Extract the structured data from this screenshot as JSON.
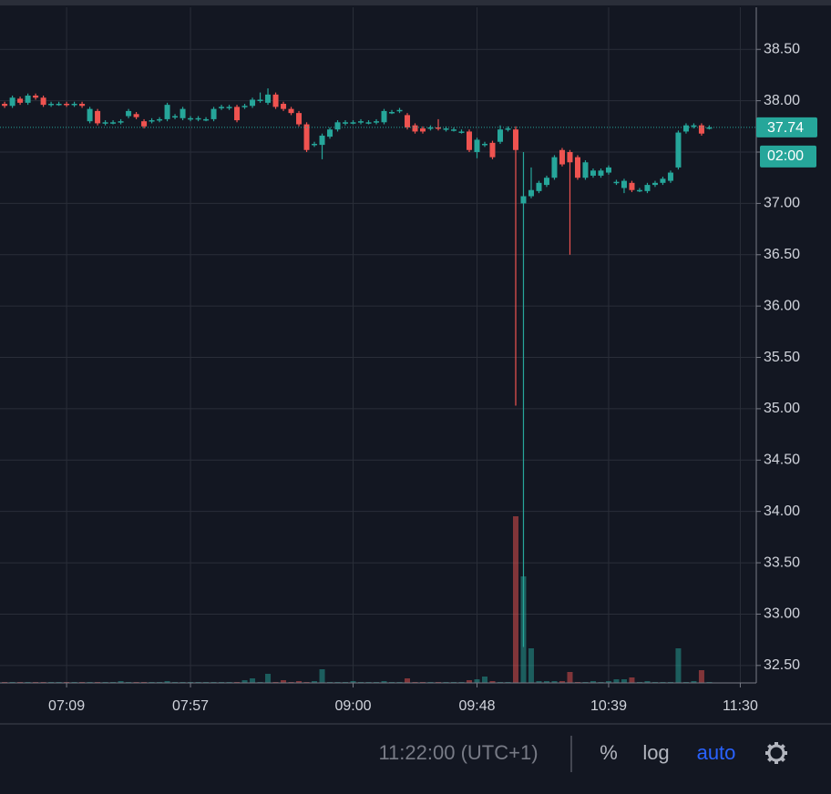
{
  "chart_data": {
    "type": "candlestick",
    "up_color": "#26a69a",
    "down_color": "#ef5350",
    "grid": true,
    "x": [
      405,
      408,
      411,
      414,
      417,
      420,
      423,
      426,
      429,
      432,
      435,
      438,
      441,
      444,
      447,
      450,
      453,
      456,
      459,
      462,
      465,
      468,
      471,
      474,
      477,
      480,
      483,
      486,
      489,
      492,
      495,
      498,
      501,
      504,
      507,
      510,
      513,
      516,
      519,
      522,
      525,
      528,
      531,
      534,
      537,
      540,
      543,
      546,
      549,
      552,
      555,
      558,
      561,
      564,
      567,
      570,
      573,
      576,
      579,
      582,
      585,
      588,
      591,
      594,
      597,
      600,
      603,
      606,
      609,
      612,
      615,
      618,
      621,
      624,
      627,
      630,
      633,
      636,
      639,
      642,
      645,
      648,
      651,
      654,
      657,
      660,
      663,
      666,
      669,
      672,
      675,
      678
    ],
    "open": [
      37.97,
      37.95,
      38.02,
      37.98,
      38.05,
      38.03,
      37.96,
      37.97,
      37.97,
      37.96,
      37.97,
      37.8,
      37.9,
      37.78,
      37.79,
      37.79,
      37.85,
      37.87,
      37.8,
      37.8,
      37.81,
      37.82,
      37.84,
      37.83,
      37.82,
      37.82,
      37.82,
      37.82,
      37.93,
      37.93,
      37.94,
      37.94,
      37.95,
      38.0,
      37.98,
      38.06,
      37.97,
      37.92,
      37.88,
      37.77,
      37.57,
      37.57,
      37.65,
      37.72,
      37.78,
      37.79,
      37.79,
      37.79,
      37.79,
      37.79,
      37.89,
      37.9,
      37.86,
      37.76,
      37.73,
      37.73,
      37.74,
      37.72,
      37.72,
      37.7,
      37.7,
      37.5,
      37.57,
      37.59,
      37.6,
      37.72,
      37.72,
      37.0,
      37.07,
      37.12,
      37.18,
      37.25,
      37.52,
      37.5,
      37.45,
      37.25,
      37.27,
      37.27,
      37.3,
      37.2,
      37.15,
      37.2,
      37.13,
      37.12,
      37.18,
      37.2,
      37.22,
      37.35,
      37.7,
      37.75,
      37.76,
      37.74
    ],
    "high": [
      37.99,
      38.05,
      38.04,
      38.07,
      38.07,
      38.05,
      37.99,
      37.99,
      37.99,
      37.99,
      37.99,
      37.94,
      37.92,
      37.81,
      37.81,
      37.82,
      37.92,
      37.89,
      37.82,
      37.83,
      37.84,
      37.98,
      37.87,
      37.94,
      37.85,
      37.85,
      37.84,
      37.94,
      37.96,
      37.96,
      37.96,
      37.97,
      38.03,
      38.08,
      38.12,
      38.08,
      37.99,
      37.94,
      37.9,
      37.79,
      37.6,
      37.68,
      37.74,
      37.81,
      37.81,
      37.81,
      37.82,
      37.81,
      37.82,
      37.92,
      37.91,
      37.93,
      37.88,
      37.78,
      37.75,
      37.76,
      37.82,
      37.75,
      37.74,
      37.72,
      37.72,
      37.64,
      37.6,
      37.61,
      37.76,
      37.75,
      37.75,
      37.5,
      37.35,
      37.22,
      37.27,
      37.47,
      37.54,
      37.52,
      37.47,
      37.42,
      37.34,
      37.34,
      37.37,
      37.23,
      37.24,
      37.22,
      37.15,
      37.2,
      37.22,
      37.26,
      37.32,
      37.71,
      37.78,
      37.78,
      37.78,
      37.76
    ],
    "low": [
      37.93,
      37.93,
      37.96,
      37.96,
      38.01,
      37.94,
      37.94,
      37.95,
      37.94,
      37.94,
      37.93,
      37.78,
      37.76,
      37.76,
      37.77,
      37.77,
      37.83,
      37.82,
      37.73,
      37.78,
      37.79,
      37.8,
      37.82,
      37.81,
      37.8,
      37.8,
      37.8,
      37.8,
      37.91,
      37.91,
      37.79,
      37.92,
      37.93,
      37.98,
      37.96,
      37.92,
      37.9,
      37.86,
      37.75,
      37.5,
      37.55,
      37.43,
      37.63,
      37.7,
      37.76,
      37.77,
      37.77,
      37.77,
      37.77,
      37.77,
      37.87,
      37.88,
      37.72,
      37.68,
      37.68,
      37.71,
      37.71,
      37.7,
      37.7,
      37.68,
      37.5,
      37.44,
      37.55,
      37.43,
      37.58,
      37.7,
      35.03,
      32.68,
      37.05,
      37.1,
      37.16,
      37.23,
      37.36,
      36.5,
      37.23,
      37.23,
      37.25,
      37.25,
      37.28,
      37.18,
      37.1,
      37.11,
      37.11,
      37.1,
      37.16,
      37.18,
      37.2,
      37.33,
      37.68,
      37.73,
      37.66,
      37.72
    ],
    "close": [
      37.95,
      38.03,
      37.98,
      38.05,
      38.03,
      37.96,
      37.97,
      37.97,
      37.96,
      37.97,
      37.95,
      37.92,
      37.78,
      37.79,
      37.79,
      37.8,
      37.9,
      37.84,
      37.75,
      37.81,
      37.82,
      37.96,
      37.85,
      37.92,
      37.83,
      37.83,
      37.82,
      37.92,
      37.94,
      37.94,
      37.81,
      37.95,
      38.01,
      38.01,
      38.06,
      37.94,
      37.92,
      37.88,
      37.77,
      37.52,
      37.58,
      37.66,
      37.72,
      37.79,
      37.79,
      37.79,
      37.8,
      37.79,
      37.8,
      37.9,
      37.89,
      37.91,
      37.74,
      37.7,
      37.7,
      37.74,
      37.73,
      37.73,
      37.72,
      37.7,
      37.52,
      37.62,
      37.58,
      37.45,
      37.72,
      37.73,
      37.52,
      37.07,
      37.13,
      37.2,
      37.25,
      37.45,
      37.38,
      37.4,
      37.25,
      37.4,
      37.32,
      37.32,
      37.35,
      37.21,
      37.22,
      37.13,
      37.13,
      37.18,
      37.2,
      37.24,
      37.3,
      37.69,
      37.76,
      37.76,
      37.68,
      37.74
    ],
    "volume": [
      1,
      1,
      1,
      1,
      1,
      1,
      1,
      1,
      1,
      1,
      1,
      1,
      1,
      1,
      1,
      2,
      1,
      1,
      1,
      1,
      1,
      2,
      1,
      1,
      1,
      1,
      1,
      1,
      1,
      1,
      1,
      3,
      5,
      1,
      10,
      1,
      3,
      1,
      2,
      1,
      2,
      15,
      1,
      1,
      1,
      2,
      1,
      1,
      1,
      2,
      1,
      1,
      5,
      1,
      1,
      1,
      1,
      1,
      1,
      1,
      3,
      4,
      7,
      2,
      1,
      1,
      183,
      117,
      38,
      2,
      2,
      2,
      2,
      12,
      1,
      1,
      2,
      1,
      2,
      4,
      4,
      6,
      1,
      2,
      1,
      1,
      1,
      38,
      1,
      2,
      14,
      1
    ],
    "vlim": [
      0,
      250
    ],
    "xlim": [
      403.2,
      696.2
    ],
    "ylim": [
      32.33,
      38.91
    ],
    "xticks": [
      {
        "value": 429,
        "label": "07:09"
      },
      {
        "value": 477,
        "label": "07:57"
      },
      {
        "value": 540,
        "label": "09:00"
      },
      {
        "value": 588,
        "label": "09:48"
      },
      {
        "value": 639,
        "label": "10:39"
      },
      {
        "value": 690,
        "label": "11:30"
      }
    ],
    "yticks": [
      {
        "value": 32.5,
        "label": "32.50"
      },
      {
        "value": 33,
        "label": "33.00"
      },
      {
        "value": 33.5,
        "label": "33.50"
      },
      {
        "value": 34,
        "label": "34.00"
      },
      {
        "value": 34.5,
        "label": "34.50"
      },
      {
        "value": 35,
        "label": "35.00"
      },
      {
        "value": 35.5,
        "label": "35.50"
      },
      {
        "value": 36,
        "label": "36.00"
      },
      {
        "value": 36.5,
        "label": "36.50"
      },
      {
        "value": 37,
        "label": "37.00"
      },
      {
        "value": 37.5,
        "label": "37.50"
      },
      {
        "value": 38,
        "label": "38.00"
      },
      {
        "value": 38.5,
        "label": "38.50"
      }
    ],
    "last_price": 37.74,
    "countdown": "02:00"
  },
  "toolbar": {
    "time": "11:22:00 (UTC+1)",
    "percent": "%",
    "log": "log",
    "auto": "auto"
  }
}
